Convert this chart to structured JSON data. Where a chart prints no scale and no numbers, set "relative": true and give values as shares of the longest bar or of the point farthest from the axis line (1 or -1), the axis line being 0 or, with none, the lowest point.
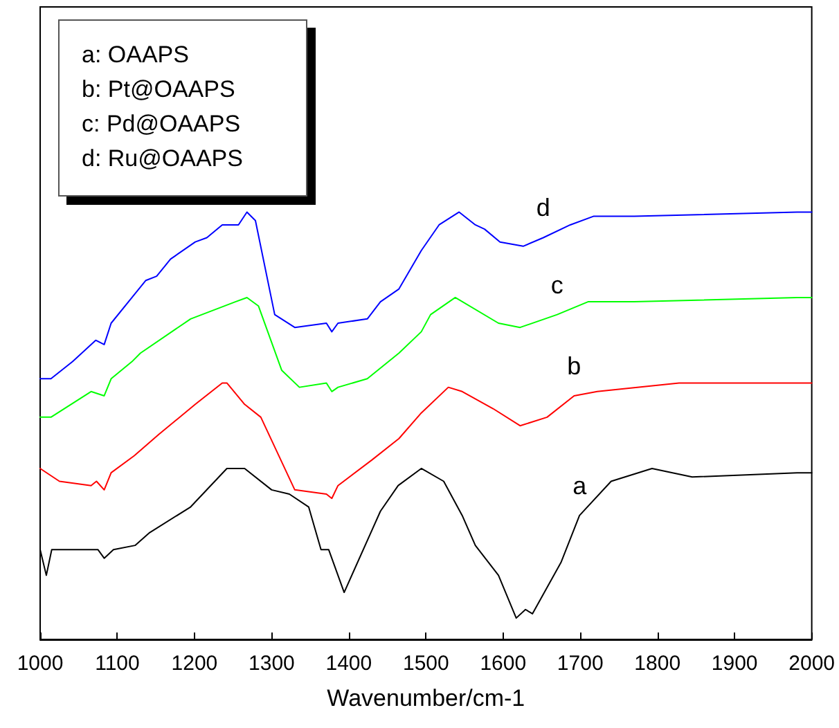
{
  "chart_data": {
    "type": "line",
    "relative": true,
    "xlabel": "Wavenumber/cm-1",
    "xlim": [
      1000,
      2000
    ],
    "xticks": [
      1000,
      1100,
      1200,
      1300,
      1400,
      1500,
      1600,
      1700,
      1800,
      1900,
      2000
    ],
    "legend": false,
    "grid": false,
    "marker": "none",
    "line_style": "solid",
    "annotations": [
      "a: OAAPS",
      "b: Pt@OAAPS",
      "c: Pd@OAAPS",
      "d: Ru@OAAPS"
    ],
    "series": [
      {
        "name": "a",
        "color": "#000000",
        "x": [
          1000,
          1008,
          1015,
          1050,
          1075,
          1083,
          1095,
          1123,
          1142,
          1195,
          1242,
          1265,
          1300,
          1323,
          1348,
          1364,
          1374,
          1394,
          1441,
          1464,
          1494,
          1523,
          1547,
          1564,
          1594,
          1617,
          1629,
          1638,
          1675,
          1699,
          1740,
          1793,
          1845,
          1981,
          2000
        ],
        "values": [
          0.21,
          0.15,
          0.21,
          0.21,
          0.21,
          0.19,
          0.21,
          0.22,
          0.25,
          0.31,
          0.4,
          0.4,
          0.35,
          0.34,
          0.31,
          0.21,
          0.21,
          0.11,
          0.3,
          0.36,
          0.4,
          0.37,
          0.29,
          0.22,
          0.15,
          0.05,
          0.07,
          0.06,
          0.18,
          0.29,
          0.37,
          0.4,
          0.38,
          0.39,
          0.39
        ]
      },
      {
        "name": "b",
        "color": "#ff0000",
        "x": [
          1000,
          1025,
          1066,
          1073,
          1083,
          1092,
          1122,
          1154,
          1201,
          1236,
          1242,
          1265,
          1286,
          1330,
          1371,
          1378,
          1386,
          1430,
          1465,
          1494,
          1529,
          1547,
          1587,
          1622,
          1657,
          1692,
          1722,
          1828,
          1981,
          2000
        ],
        "values": [
          0.4,
          0.37,
          0.36,
          0.37,
          0.35,
          0.39,
          0.43,
          0.48,
          0.55,
          0.6,
          0.6,
          0.55,
          0.52,
          0.35,
          0.34,
          0.33,
          0.36,
          0.42,
          0.47,
          0.53,
          0.59,
          0.58,
          0.54,
          0.5,
          0.52,
          0.57,
          0.58,
          0.6,
          0.6,
          0.6
        ]
      },
      {
        "name": "c",
        "color": "#00ff00",
        "x": [
          1000,
          1014,
          1066,
          1083,
          1092,
          1119,
          1130,
          1195,
          1253,
          1268,
          1283,
          1313,
          1336,
          1371,
          1378,
          1386,
          1424,
          1465,
          1494,
          1506,
          1538,
          1594,
          1622,
          1670,
          1710,
          1770,
          1981,
          2000
        ],
        "values": [
          0.52,
          0.52,
          0.58,
          0.57,
          0.61,
          0.65,
          0.67,
          0.75,
          0.79,
          0.8,
          0.78,
          0.63,
          0.59,
          0.6,
          0.58,
          0.59,
          0.61,
          0.67,
          0.72,
          0.76,
          0.8,
          0.74,
          0.73,
          0.76,
          0.79,
          0.79,
          0.8,
          0.8
        ]
      },
      {
        "name": "d",
        "color": "#0000ff",
        "x": [
          1000,
          1014,
          1042,
          1072,
          1083,
          1092,
          1119,
          1137,
          1151,
          1169,
          1201,
          1216,
          1236,
          1257,
          1268,
          1279,
          1304,
          1330,
          1371,
          1378,
          1386,
          1424,
          1441,
          1465,
          1494,
          1517,
          1543,
          1564,
          1576,
          1596,
          1626,
          1652,
          1687,
          1717,
          1770,
          1981,
          2000
        ],
        "values": [
          0.61,
          0.61,
          0.65,
          0.7,
          0.69,
          0.74,
          0.8,
          0.84,
          0.85,
          0.89,
          0.93,
          0.94,
          0.97,
          0.97,
          1.0,
          0.98,
          0.76,
          0.73,
          0.74,
          0.72,
          0.74,
          0.75,
          0.79,
          0.82,
          0.91,
          0.97,
          1.0,
          0.97,
          0.96,
          0.93,
          0.92,
          0.94,
          0.97,
          0.99,
          0.99,
          1.0,
          1.0
        ]
      }
    ]
  }
}
